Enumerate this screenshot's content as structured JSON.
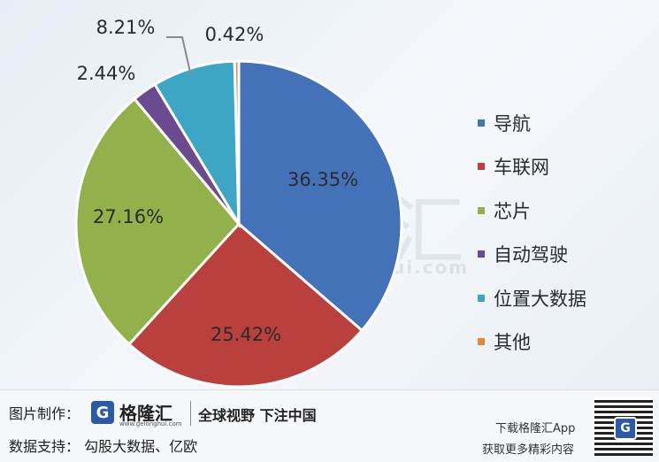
{
  "chart_data": {
    "type": "pie",
    "title": "",
    "categories": [
      "导航",
      "车联网",
      "芯片",
      "自动驾驶",
      "位置大数据",
      "其他"
    ],
    "values": [
      36.35,
      25.42,
      27.16,
      2.44,
      8.21,
      0.42
    ],
    "labels": [
      "36.35%",
      "25.42%",
      "27.16%",
      "2.44%",
      "8.21%",
      "0.42%"
    ],
    "colors": [
      "#4472b9",
      "#b9403d",
      "#92b14a",
      "#6a4b8f",
      "#3ca6c4",
      "#e4893b"
    ],
    "legend_position": "right"
  },
  "watermark": {
    "text": "格隆汇",
    "url": "www.gelonghui.com"
  },
  "footer": {
    "credit_label": "图片制作：",
    "logo_letter": "G",
    "logo_name": "格隆汇",
    "logo_url": "www.gelonghui.com",
    "slogan": "全球视野 下注中国",
    "data_label": "数据支持：",
    "data_source": "勾股大数据、亿欧",
    "download_line1": "下载格隆汇App",
    "download_line2": "获取更多精彩内容",
    "qr_letter": "G"
  }
}
